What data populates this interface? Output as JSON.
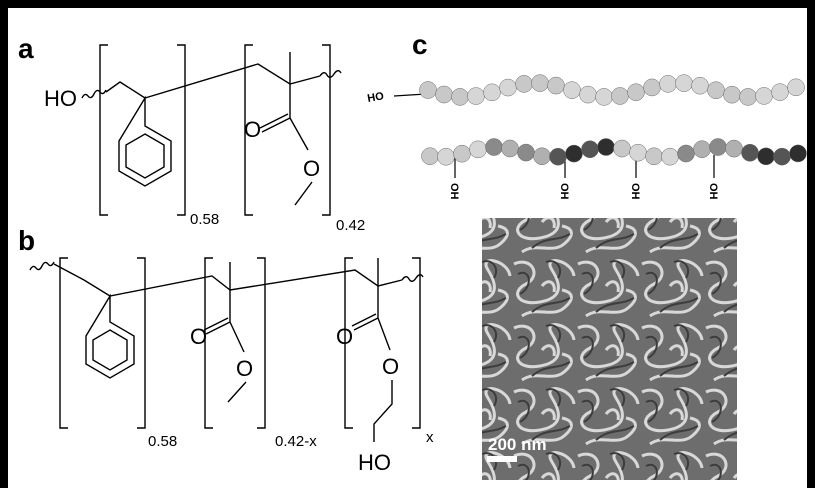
{
  "panels": {
    "a": {
      "label": "a",
      "ho": "HO",
      "carbonyl_o": "O",
      "ester_o": "O",
      "subscript_1": "0.58",
      "subscript_2": "0.42"
    },
    "b": {
      "label": "b",
      "carbonyl_o_1": "O",
      "ester_o_1": "O",
      "carbonyl_o_2": "O",
      "ester_o_2": "O",
      "ho": "HO",
      "subscript_1": "0.58",
      "subscript_2": "0.42-x",
      "subscript_3": "x"
    },
    "c": {
      "label": "c",
      "chain_end": "HO",
      "pendants": [
        "OH",
        "OH",
        "OH",
        "OH"
      ],
      "scale_bar": "200 nm"
    }
  }
}
